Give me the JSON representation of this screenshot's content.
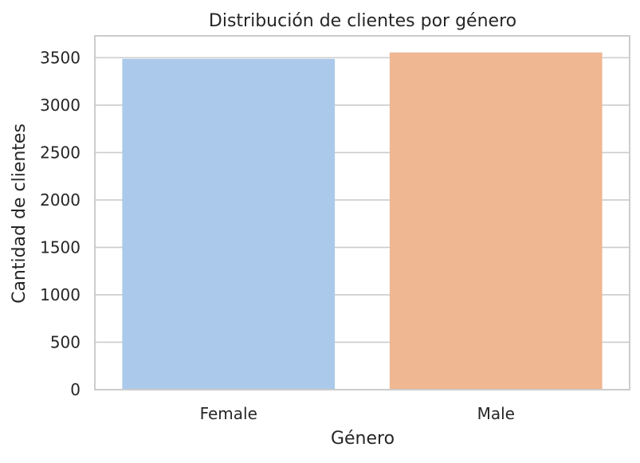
{
  "chart_data": {
    "type": "bar",
    "title": "Distribución de clientes por género",
    "xlabel": "Género",
    "ylabel": "Cantidad de clientes",
    "categories": [
      "Female",
      "Male"
    ],
    "values": [
      3488,
      3555
    ],
    "ylim": [
      0,
      3730
    ],
    "yticks": [
      0,
      500,
      1000,
      1500,
      2000,
      2500,
      3000,
      3500
    ],
    "ytick_labels": [
      "0",
      "500",
      "1000",
      "1500",
      "2000",
      "2500",
      "3000",
      "3500"
    ],
    "grid": true,
    "colors": [
      "#abc9ea",
      "#efb792"
    ],
    "gridline_color": "#cccccc",
    "spine_color": "#cccccc"
  }
}
